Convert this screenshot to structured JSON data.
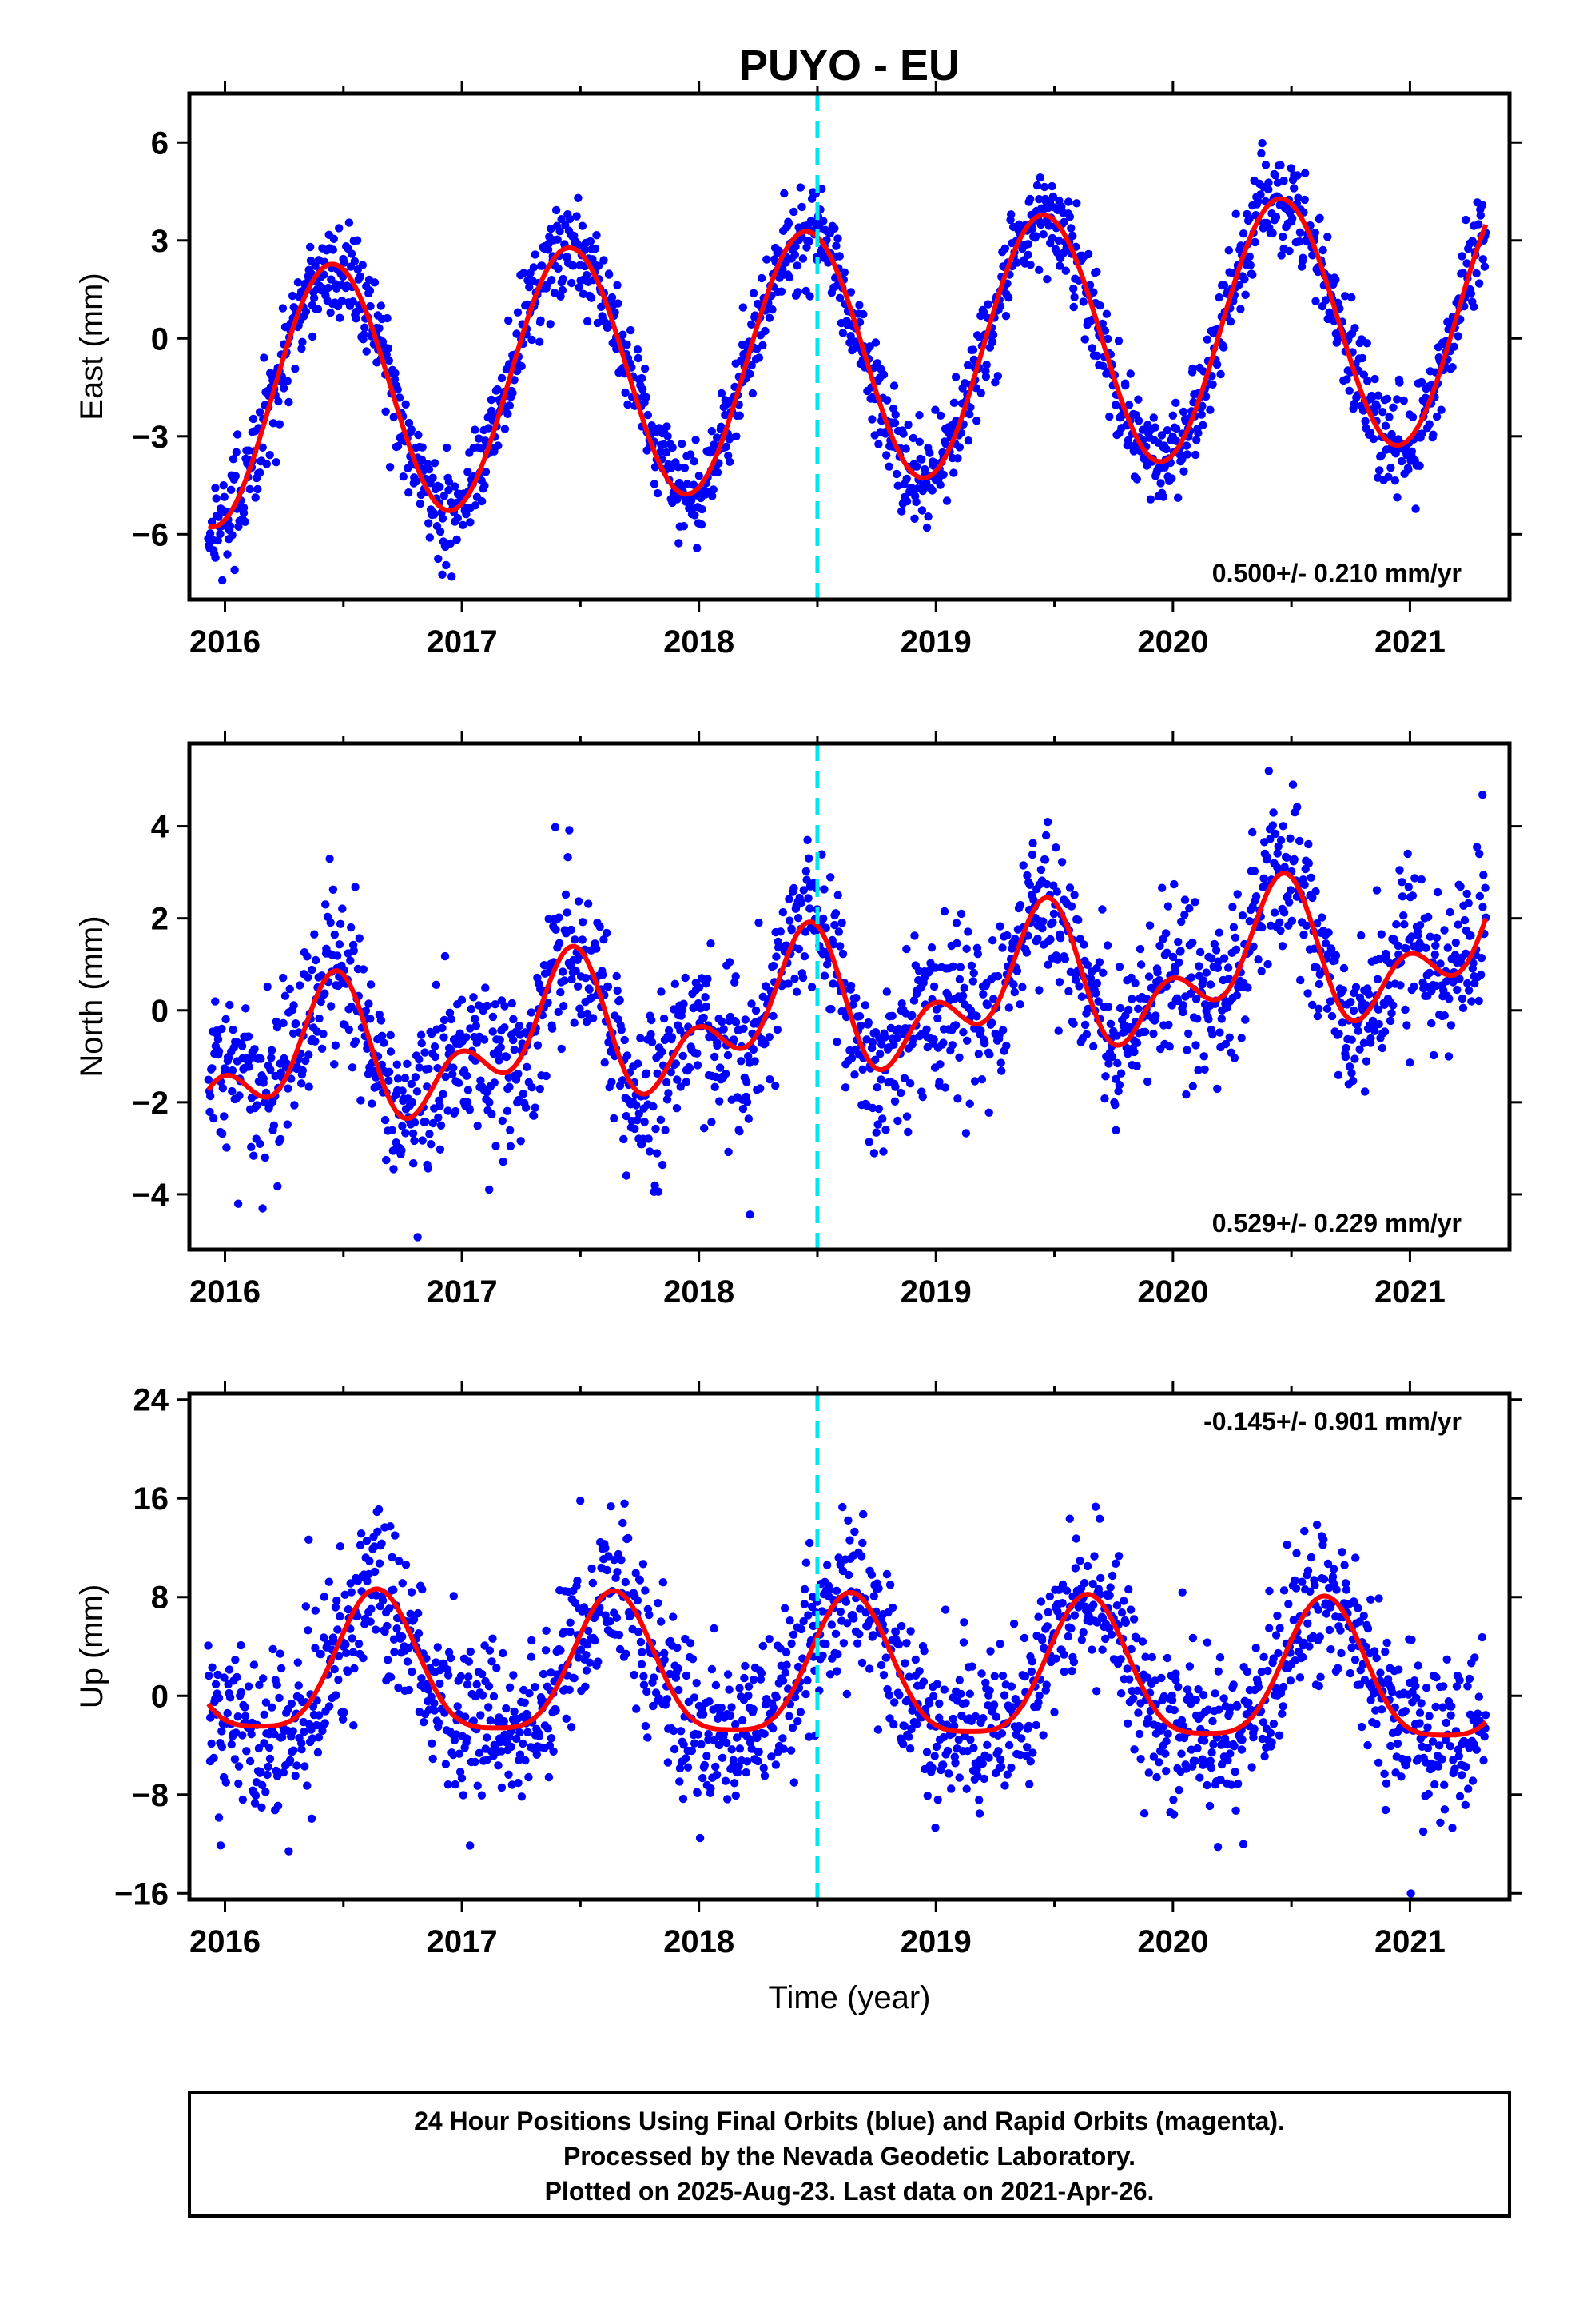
{
  "title": "PUYO - EU",
  "x_axis_label": "Time (year)",
  "caption_lines": [
    "24 Hour Positions Using Final Orbits (blue) and Rapid Orbits (magenta).",
    "Processed by the Nevada Geodetic Laboratory.",
    "Plotted on 2025-Aug-23. Last data on 2021-Apr-26."
  ],
  "colors": {
    "points": "#0000ff",
    "fit": "#ff0000",
    "event_line": "#00e5ee",
    "frame": "#000000"
  },
  "chart_data": [
    {
      "type": "scatter",
      "ylabel": "East (mm)",
      "rate_label": "0.500+/- 0.210 mm/yr",
      "xlim": [
        2015.85,
        2021.42
      ],
      "ylim": [
        -8,
        7.5
      ],
      "xticks": [
        2016,
        2017,
        2018,
        2019,
        2020,
        2021
      ],
      "yticks": [
        -6,
        -3,
        0,
        3,
        6
      ],
      "ytick_labels": [
        "−6",
        "−3",
        "0",
        "3",
        "6"
      ],
      "event_line_x": 2018.5,
      "fit": {
        "offset": -0.6,
        "trend_mm_per_yr": 0.5,
        "t0": 2018.5,
        "annual_amp": 3.9,
        "annual_peak": 2018.45,
        "semiannual_amp": 0.0,
        "semiannual_peak": 2018.0
      },
      "scatter_sigma": 0.75,
      "series": [
        {
          "name": "Final Orbits",
          "x_range": [
            2015.93,
            2021.32
          ],
          "n_points": 1750
        }
      ]
    },
    {
      "type": "scatter",
      "ylabel": "North (mm)",
      "rate_label": "0.529+/- 0.229 mm/yr",
      "xlim": [
        2015.85,
        2021.42
      ],
      "ylim": [
        -5.2,
        5.8
      ],
      "xticks": [
        2016,
        2017,
        2018,
        2019,
        2020,
        2021
      ],
      "yticks": [
        -4,
        -2,
        0,
        2,
        4
      ],
      "ytick_labels": [
        "−4",
        "−2",
        "0",
        "2",
        "4"
      ],
      "event_line_x": 2018.5,
      "fit": {
        "offset": 0.0,
        "trend_mm_per_yr": 0.53,
        "t0": 2018.5,
        "annual_amp": 1.1,
        "annual_peak": 2018.42,
        "semiannual_amp": 0.9,
        "semiannual_peak": 2018.48
      },
      "scatter_sigma": 0.9,
      "series": [
        {
          "name": "Final Orbits",
          "x_range": [
            2015.93,
            2021.32
          ],
          "n_points": 1750
        }
      ]
    },
    {
      "type": "scatter",
      "ylabel": "Up (mm)",
      "rate_label": "-0.145+/- 0.901 mm/yr",
      "xlim": [
        2015.85,
        2021.42
      ],
      "ylim": [
        -16.5,
        24.5
      ],
      "xticks": [
        2016,
        2017,
        2018,
        2019,
        2020,
        2021
      ],
      "yticks": [
        -16,
        -8,
        0,
        8,
        16,
        24
      ],
      "ytick_labels": [
        "−16",
        "−8",
        "0",
        "8",
        "16",
        "24"
      ],
      "event_line_x": 2018.5,
      "fit": {
        "offset": 1.5,
        "trend_mm_per_yr": -0.145,
        "t0": 2018.5,
        "annual_amp": 5.6,
        "annual_peak": 2018.64,
        "semiannual_amp": 1.3,
        "semiannual_peak": 2018.64
      },
      "scatter_sigma": 3.3,
      "series": [
        {
          "name": "Final Orbits",
          "x_range": [
            2015.93,
            2021.32
          ],
          "n_points": 1750
        }
      ]
    }
  ]
}
